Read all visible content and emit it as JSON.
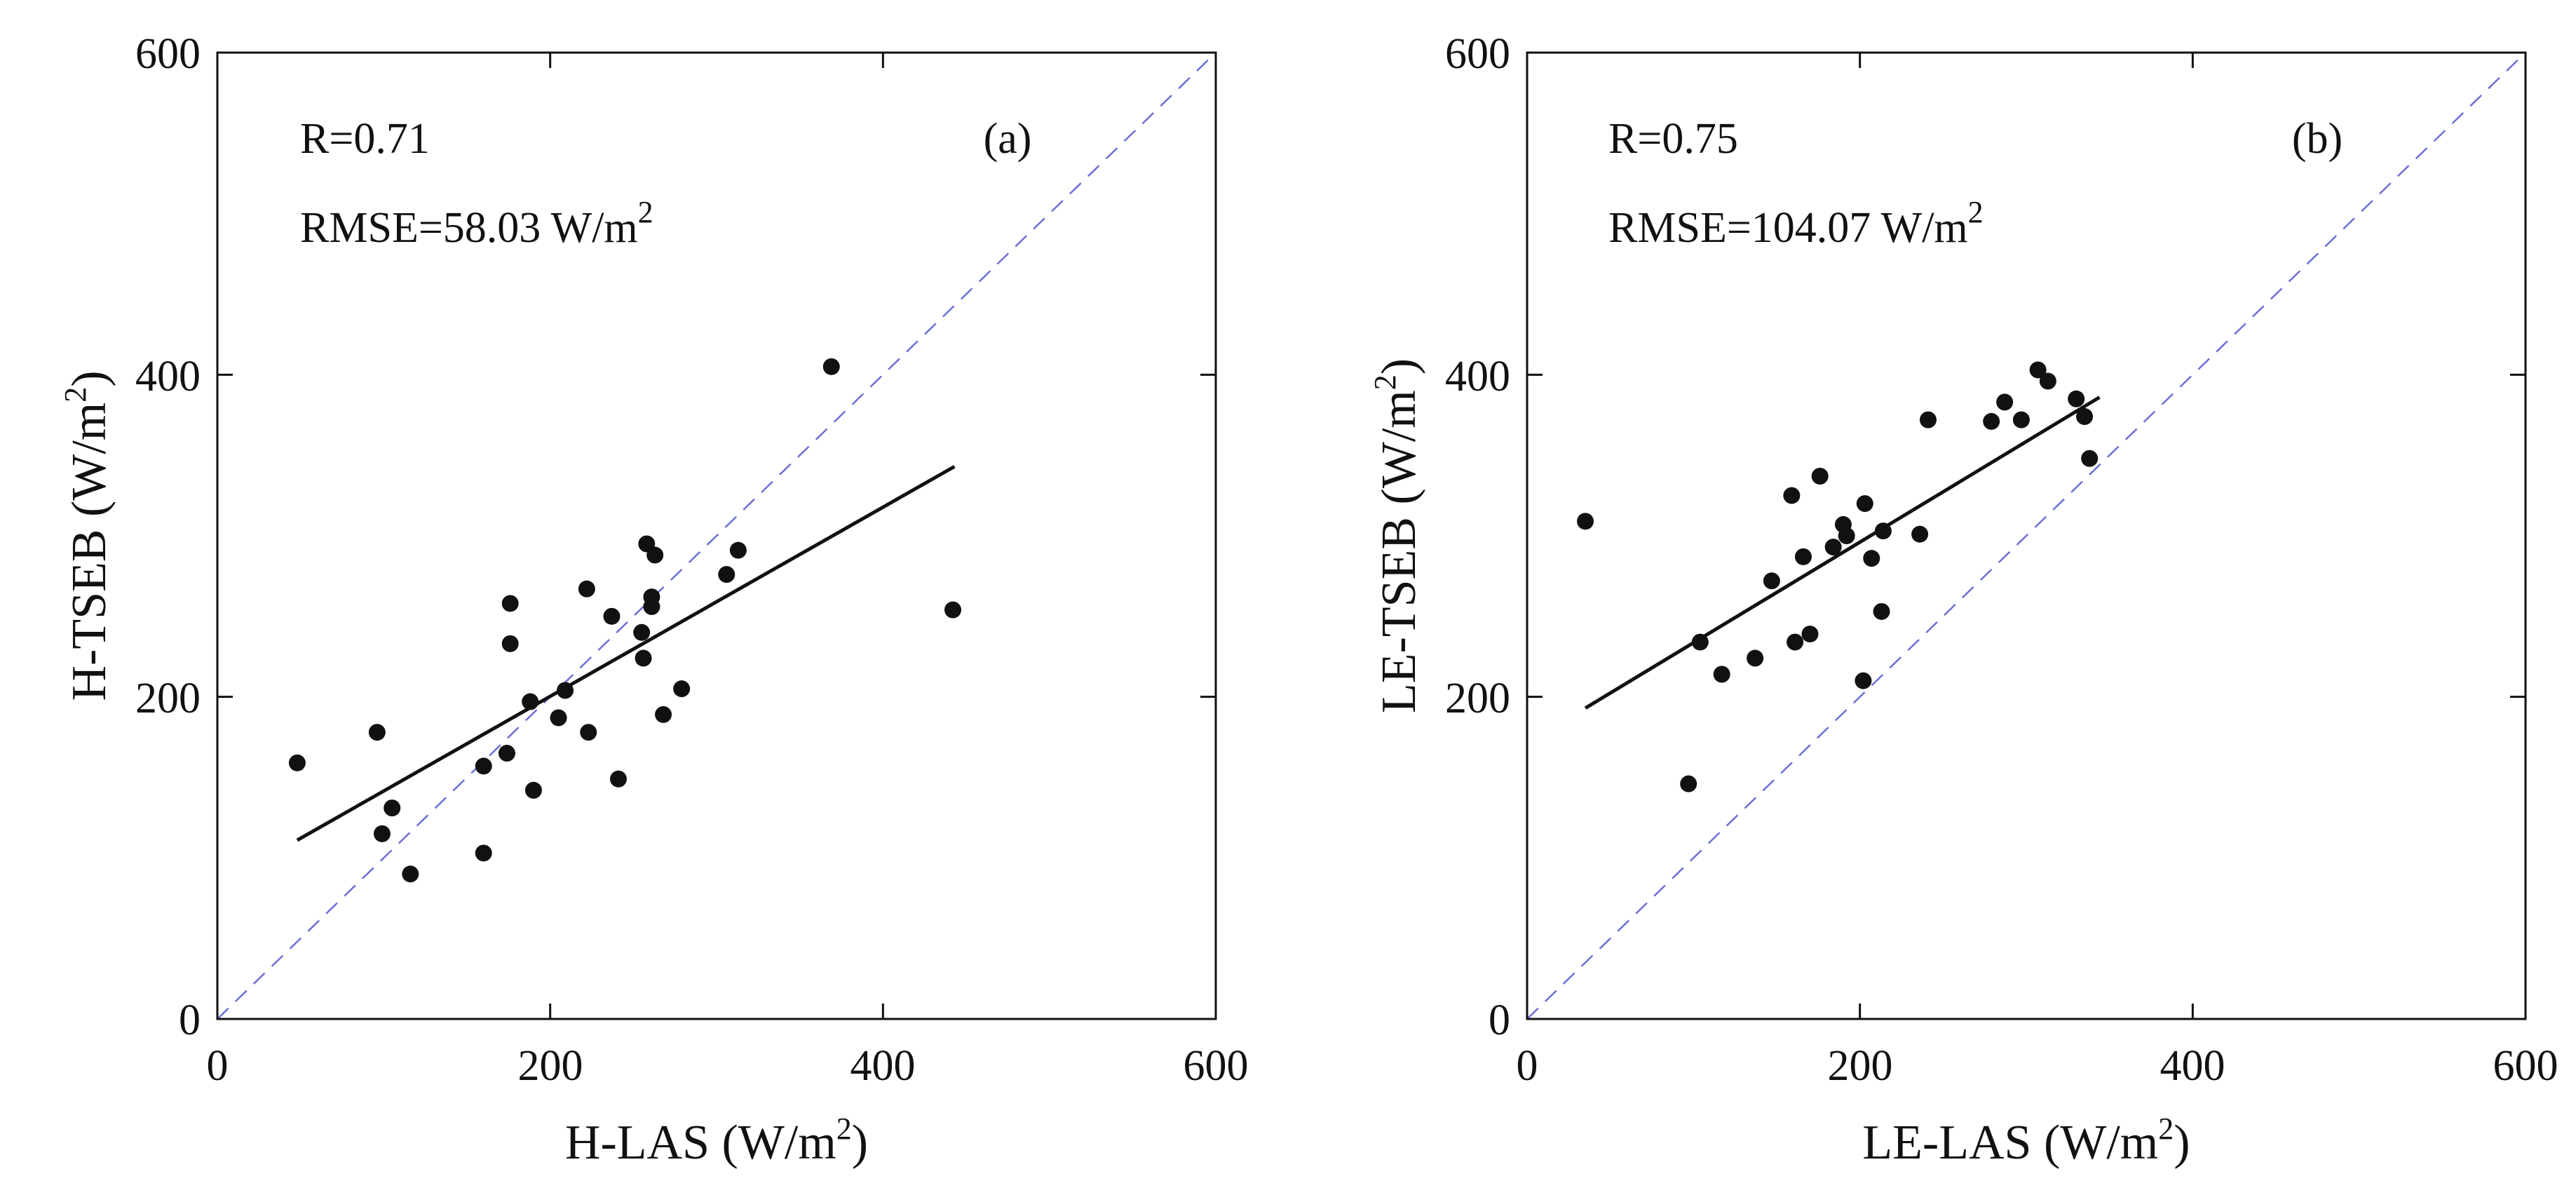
{
  "colors": {
    "points": "#111111",
    "fit_line": "#111111",
    "identity_line": "#6b6fd8",
    "axes": "#111111"
  },
  "chart_data": [
    {
      "type": "scatter",
      "panel_label": "(a)",
      "annotation_r": "R=0.71",
      "annotation_rmse": "RMSE=58.03 W/m",
      "annotation_rmse_sup": "2",
      "xlabel": "H-LAS (W/m",
      "xlabel_sup": "2",
      "xlabel_end": ")",
      "ylabel": "H-TSEB (W/m",
      "ylabel_sup": "2",
      "ylabel_end": ")",
      "xlim": [
        0,
        600
      ],
      "ylim": [
        0,
        600
      ],
      "xticks": [
        "0",
        "200",
        "400",
        "600"
      ],
      "yticks": [
        "0",
        "200",
        "400",
        "600"
      ],
      "fit_line": {
        "x": [
          48,
          443
        ],
        "y": [
          111,
          343
        ]
      },
      "identity_line": {
        "x": [
          0,
          600
        ],
        "y": [
          0,
          600
        ]
      },
      "points": [
        {
          "x": 48,
          "y": 159
        },
        {
          "x": 96,
          "y": 178
        },
        {
          "x": 99,
          "y": 115
        },
        {
          "x": 105,
          "y": 131
        },
        {
          "x": 116,
          "y": 90
        },
        {
          "x": 160,
          "y": 103
        },
        {
          "x": 160,
          "y": 157
        },
        {
          "x": 174,
          "y": 165
        },
        {
          "x": 176,
          "y": 233
        },
        {
          "x": 176,
          "y": 258
        },
        {
          "x": 188,
          "y": 197
        },
        {
          "x": 190,
          "y": 142
        },
        {
          "x": 205,
          "y": 187
        },
        {
          "x": 209,
          "y": 204
        },
        {
          "x": 222,
          "y": 267
        },
        {
          "x": 223,
          "y": 178
        },
        {
          "x": 237,
          "y": 250
        },
        {
          "x": 241,
          "y": 149
        },
        {
          "x": 255,
          "y": 240
        },
        {
          "x": 256,
          "y": 224
        },
        {
          "x": 258,
          "y": 295
        },
        {
          "x": 261,
          "y": 262
        },
        {
          "x": 261,
          "y": 256
        },
        {
          "x": 263,
          "y": 288
        },
        {
          "x": 268,
          "y": 189
        },
        {
          "x": 279,
          "y": 205
        },
        {
          "x": 306,
          "y": 276
        },
        {
          "x": 313,
          "y": 291
        },
        {
          "x": 369,
          "y": 405
        },
        {
          "x": 442,
          "y": 254
        }
      ]
    },
    {
      "type": "scatter",
      "panel_label": "(b)",
      "annotation_r": "R=0.75",
      "annotation_rmse": "RMSE=104.07 W/m",
      "annotation_rmse_sup": "2",
      "xlabel": "LE-LAS (W/m",
      "xlabel_sup": "2",
      "xlabel_end": ")",
      "ylabel": "LE-TSEB (W/m",
      "ylabel_sup": "2",
      "ylabel_end": ")",
      "xlim": [
        0,
        600
      ],
      "ylim": [
        0,
        600
      ],
      "xticks": [
        "0",
        "200",
        "400",
        "600"
      ],
      "yticks": [
        "0",
        "200",
        "400",
        "600"
      ],
      "fit_line": {
        "x": [
          35,
          344
        ],
        "y": [
          193,
          386
        ]
      },
      "identity_line": {
        "x": [
          0,
          600
        ],
        "y": [
          0,
          600
        ]
      },
      "points": [
        {
          "x": 35,
          "y": 309
        },
        {
          "x": 97,
          "y": 146
        },
        {
          "x": 104,
          "y": 234
        },
        {
          "x": 117,
          "y": 214
        },
        {
          "x": 137,
          "y": 224
        },
        {
          "x": 147,
          "y": 272
        },
        {
          "x": 159,
          "y": 325
        },
        {
          "x": 161,
          "y": 234
        },
        {
          "x": 166,
          "y": 287
        },
        {
          "x": 170,
          "y": 239
        },
        {
          "x": 176,
          "y": 337
        },
        {
          "x": 184,
          "y": 293
        },
        {
          "x": 190,
          "y": 307
        },
        {
          "x": 192,
          "y": 300
        },
        {
          "x": 202,
          "y": 210
        },
        {
          "x": 203,
          "y": 320
        },
        {
          "x": 207,
          "y": 286
        },
        {
          "x": 213,
          "y": 253
        },
        {
          "x": 214,
          "y": 303
        },
        {
          "x": 236,
          "y": 301
        },
        {
          "x": 241,
          "y": 372
        },
        {
          "x": 279,
          "y": 371
        },
        {
          "x": 287,
          "y": 383
        },
        {
          "x": 297,
          "y": 372
        },
        {
          "x": 307,
          "y": 403
        },
        {
          "x": 313,
          "y": 396
        },
        {
          "x": 330,
          "y": 385
        },
        {
          "x": 335,
          "y": 374
        },
        {
          "x": 338,
          "y": 348
        }
      ]
    }
  ]
}
